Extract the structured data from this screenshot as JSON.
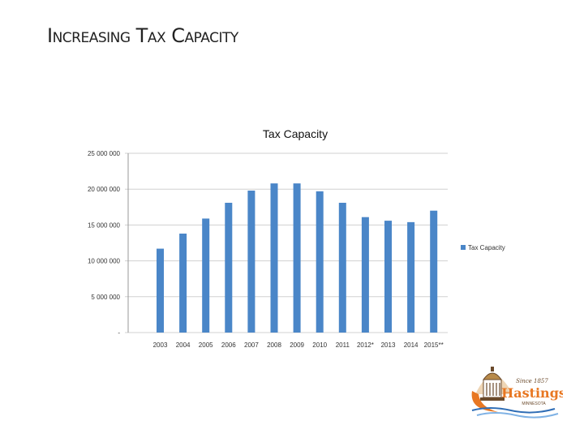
{
  "slide": {
    "title": "Increasing Tax Capacity"
  },
  "logo": {
    "tagline": "Since 1857",
    "name": "Hastings",
    "state": "MINNESOTA"
  },
  "chart_data": {
    "type": "bar",
    "title": "Tax Capacity",
    "categories": [
      "2003",
      "2004",
      "2005",
      "2006",
      "2007",
      "2008",
      "2009",
      "2010",
      "2011",
      "2012*",
      "2013",
      "2014",
      "2015**"
    ],
    "series": [
      {
        "name": "Tax Capacity",
        "color": "#4A86C8",
        "values": [
          11700000,
          13800000,
          15900000,
          18100000,
          19800000,
          20800000,
          20800000,
          19700000,
          18100000,
          16100000,
          15600000,
          15400000,
          17000000
        ]
      }
    ],
    "ylim": [
      0,
      25000000
    ],
    "yticks": [
      0,
      5000000,
      10000000,
      15000000,
      20000000,
      25000000
    ],
    "ytick_labels": [
      "-",
      "5 000 000",
      "10 000 000",
      "15 000 000",
      "20 000 000",
      "25 000 000"
    ],
    "grid": true,
    "legend": "right"
  }
}
